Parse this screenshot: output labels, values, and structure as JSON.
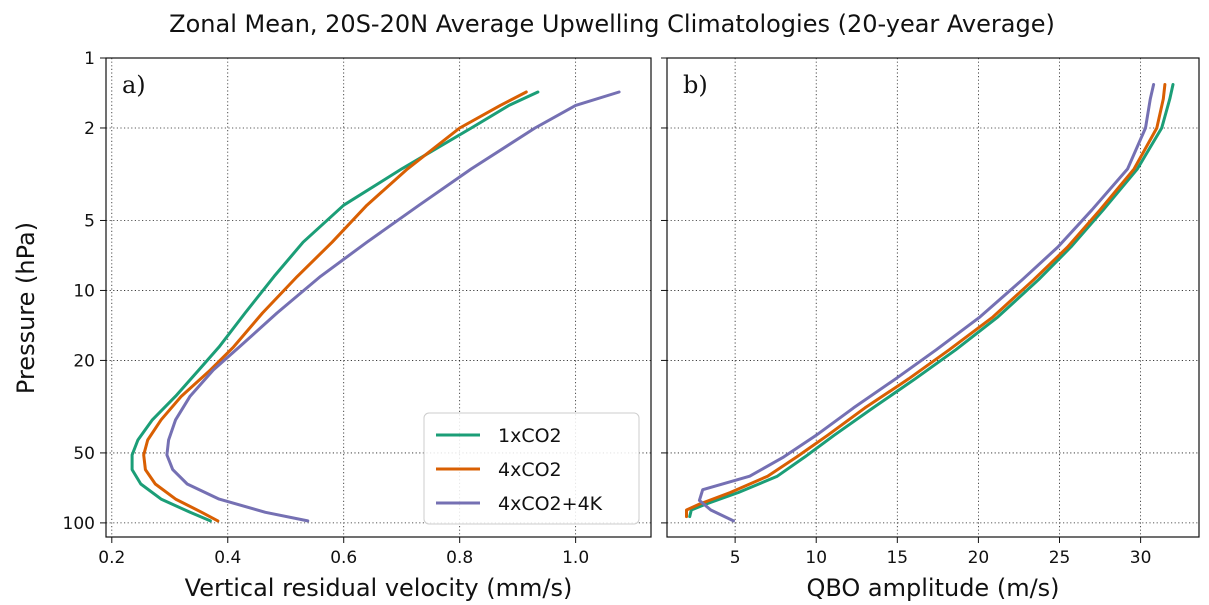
{
  "figure_title": "Zonal Mean, 20S-20N Average Upwelling Climatologies (20-year Average)",
  "ylabel": "Pressure (hPa)",
  "legend": {
    "placement": "lower-right of panel a",
    "entries": [
      "1xCO2",
      "4xCO2",
      "4xCO2+4K"
    ]
  },
  "colors": {
    "1xCO2": "#1b9e77",
    "4xCO2": "#d95f02",
    "4xCO2+4K": "#7570b3"
  },
  "chart_data": [
    {
      "type": "line",
      "panel_label": "a)",
      "title": "",
      "xlabel": "Vertical residual velocity (mm/s)",
      "ylabel": "Pressure (hPa)",
      "xlim": [
        0.19,
        1.13
      ],
      "xticks": [
        "0.2",
        "0.4",
        "0.6",
        "0.8",
        "1.0"
      ],
      "ylim": [
        115,
        1
      ],
      "yscale": "log",
      "yticks": [
        "1",
        "2",
        "5",
        "10",
        "20",
        "50",
        "100"
      ],
      "grid": true,
      "series": [
        {
          "name": "1xCO2",
          "color": "#1b9e77",
          "x": [
            0.935,
            0.885,
            0.82,
            0.7,
            0.6,
            0.53,
            0.48,
            0.43,
            0.385,
            0.35,
            0.31,
            0.27,
            0.245,
            0.235,
            0.235,
            0.25,
            0.285,
            0.335,
            0.37
          ],
          "y": [
            1.4,
            1.6,
            2.0,
            3.0,
            4.3,
            6.2,
            8.7,
            12.5,
            17.5,
            22.0,
            28.5,
            36.0,
            44.0,
            51.0,
            59.0,
            68.0,
            79.0,
            90.0,
            98.0
          ]
        },
        {
          "name": "4xCO2",
          "color": "#d95f02",
          "x": [
            0.915,
            0.87,
            0.8,
            0.71,
            0.64,
            0.58,
            0.52,
            0.46,
            0.41,
            0.37,
            0.32,
            0.285,
            0.262,
            0.255,
            0.258,
            0.275,
            0.31,
            0.355,
            0.383
          ],
          "y": [
            1.4,
            1.6,
            2.0,
            3.0,
            4.3,
            6.2,
            8.7,
            12.5,
            17.5,
            22.0,
            28.5,
            36.0,
            44.0,
            51.0,
            59.0,
            68.0,
            79.0,
            90.0,
            98.0
          ]
        },
        {
          "name": "4xCO2+4K",
          "color": "#7570b3",
          "x": [
            1.075,
            1.0,
            0.93,
            0.82,
            0.73,
            0.64,
            0.56,
            0.485,
            0.42,
            0.375,
            0.335,
            0.31,
            0.298,
            0.295,
            0.305,
            0.33,
            0.385,
            0.465,
            0.538
          ],
          "y": [
            1.4,
            1.6,
            2.0,
            3.0,
            4.3,
            6.2,
            8.7,
            12.5,
            17.5,
            22.0,
            28.5,
            36.0,
            44.0,
            51.0,
            59.0,
            68.0,
            79.0,
            90.0,
            98.0
          ]
        }
      ]
    },
    {
      "type": "line",
      "panel_label": "b)",
      "title": "",
      "xlabel": "QBO amplitude (m/s)",
      "ylabel": "",
      "xlim": [
        0.8,
        33.6
      ],
      "xticks": [
        "5",
        "10",
        "15",
        "20",
        "25",
        "30"
      ],
      "ylim": [
        115,
        1
      ],
      "yscale": "log",
      "yticks": [
        "1",
        "2",
        "5",
        "10",
        "20",
        "50",
        "100"
      ],
      "grid": true,
      "series": [
        {
          "name": "1xCO2",
          "color": "#1b9e77",
          "x": [
            32.0,
            31.8,
            31.3,
            29.8,
            27.7,
            25.7,
            23.7,
            21.2,
            18.6,
            16.1,
            13.5,
            11.1,
            9.3,
            7.6,
            5.2,
            3.2,
            2.3,
            2.2
          ],
          "y": [
            1.3,
            1.5,
            2.0,
            3.0,
            4.5,
            6.5,
            9.0,
            13.0,
            18.0,
            24.0,
            32.0,
            42.0,
            52.0,
            63.0,
            74.0,
            83.0,
            88.0,
            94.0
          ]
        },
        {
          "name": "4xCO2",
          "color": "#d95f02",
          "x": [
            31.5,
            31.4,
            31.0,
            29.6,
            27.5,
            25.5,
            23.4,
            20.9,
            18.2,
            15.7,
            13.0,
            10.7,
            8.8,
            7.0,
            4.7,
            2.8,
            2.0,
            2.0
          ],
          "y": [
            1.3,
            1.5,
            2.0,
            3.0,
            4.5,
            6.5,
            9.0,
            13.0,
            18.0,
            24.0,
            32.0,
            42.0,
            52.0,
            63.0,
            74.0,
            83.0,
            88.0,
            94.0
          ]
        },
        {
          "name": "4xCO2+4K",
          "color": "#7570b3",
          "x": [
            30.8,
            30.6,
            30.3,
            29.2,
            27.0,
            24.9,
            22.7,
            20.1,
            17.4,
            14.9,
            12.3,
            10.0,
            8.0,
            5.9,
            3.0,
            2.8,
            3.5,
            4.9
          ],
          "y": [
            1.3,
            1.5,
            2.0,
            3.0,
            4.5,
            6.5,
            9.0,
            13.0,
            18.0,
            24.0,
            32.0,
            42.0,
            52.0,
            63.0,
            72.0,
            80.0,
            88.0,
            98.0
          ]
        }
      ]
    }
  ]
}
